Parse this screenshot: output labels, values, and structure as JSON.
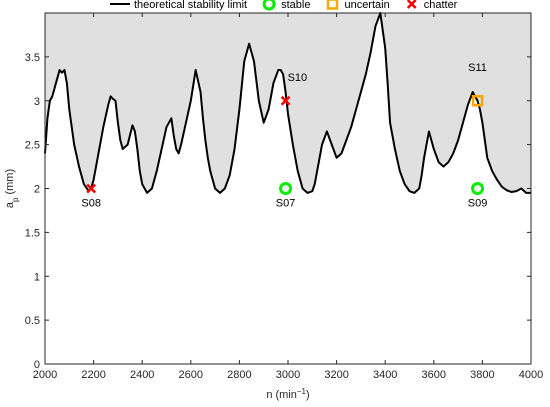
{
  "chart_data": {
    "type": "line",
    "xlabel_base": "n (min",
    "xlabel_sup": "−1",
    "xlabel_tail": ")",
    "ylabel_base": "a",
    "ylabel_sub": "p",
    "ylabel_tail": " (mm)",
    "xlim": [
      2000,
      4000
    ],
    "ylim": [
      0,
      4
    ],
    "xticks": [
      2000,
      2200,
      2400,
      2600,
      2800,
      3000,
      3200,
      3400,
      3600,
      3800,
      4000
    ],
    "yticks": [
      0,
      0.5,
      1,
      1.5,
      2,
      2.5,
      3,
      3.5
    ],
    "ytick_labels": [
      "0",
      "0.5",
      "1",
      "1.5",
      "2",
      "2.5",
      "3",
      "3.5"
    ],
    "grid": false,
    "legend_position": "top",
    "legend": [
      {
        "key": "limit",
        "label": "theoretical stability limit"
      },
      {
        "key": "stable",
        "label": "stable"
      },
      {
        "key": "uncertain",
        "label": "uncertain"
      },
      {
        "key": "chatter",
        "label": "chatter"
      }
    ],
    "colors": {
      "limit": "#000000",
      "fill": "#e0e0e0",
      "stable": "#00ee00",
      "uncertain": "#ffa500",
      "chatter": "#ff0000"
    },
    "stability_limit": {
      "x": [
        2000,
        2010,
        2020,
        2030,
        2040,
        2055,
        2060,
        2070,
        2080,
        2090,
        2100,
        2110,
        2120,
        2140,
        2160,
        2180,
        2190,
        2200,
        2220,
        2240,
        2260,
        2270,
        2280,
        2290,
        2300,
        2310,
        2320,
        2340,
        2360,
        2370,
        2380,
        2390,
        2400,
        2420,
        2440,
        2460,
        2480,
        2500,
        2520,
        2530,
        2540,
        2550,
        2560,
        2580,
        2600,
        2620,
        2640,
        2650,
        2660,
        2670,
        2680,
        2700,
        2720,
        2740,
        2760,
        2780,
        2800,
        2820,
        2840,
        2860,
        2880,
        2900,
        2920,
        2940,
        2960,
        2970,
        2980,
        2990,
        3000,
        3020,
        3040,
        3060,
        3080,
        3100,
        3110,
        3120,
        3130,
        3140,
        3160,
        3180,
        3200,
        3220,
        3240,
        3260,
        3280,
        3300,
        3320,
        3340,
        3360,
        3380,
        3400,
        3410,
        3420,
        3440,
        3460,
        3480,
        3500,
        3520,
        3540,
        3550,
        3560,
        3570,
        3580,
        3590,
        3600,
        3620,
        3640,
        3660,
        3680,
        3700,
        3720,
        3740,
        3760,
        3780,
        3790,
        3800,
        3810,
        3820,
        3840,
        3860,
        3880,
        3900,
        3920,
        3940,
        3960,
        3980,
        4000
      ],
      "y": [
        2.4,
        2.8,
        3.0,
        3.05,
        3.15,
        3.3,
        3.35,
        3.32,
        3.35,
        3.2,
        2.9,
        2.7,
        2.5,
        2.25,
        2.05,
        1.97,
        2.0,
        2.1,
        2.4,
        2.7,
        2.95,
        3.05,
        3.02,
        3.0,
        2.75,
        2.55,
        2.45,
        2.5,
        2.72,
        2.65,
        2.45,
        2.2,
        2.05,
        1.95,
        2.0,
        2.2,
        2.45,
        2.7,
        2.8,
        2.6,
        2.45,
        2.4,
        2.5,
        2.75,
        3.0,
        3.35,
        3.1,
        2.8,
        2.55,
        2.35,
        2.2,
        2.0,
        1.95,
        2.0,
        2.15,
        2.45,
        2.9,
        3.45,
        3.65,
        3.45,
        3.0,
        2.75,
        2.9,
        3.2,
        3.35,
        3.35,
        3.3,
        3.1,
        2.85,
        2.5,
        2.2,
        2.0,
        1.95,
        1.97,
        2.05,
        2.2,
        2.35,
        2.5,
        2.65,
        2.5,
        2.35,
        2.4,
        2.55,
        2.7,
        2.9,
        3.1,
        3.3,
        3.55,
        3.85,
        4.0,
        3.6,
        3.2,
        2.75,
        2.45,
        2.2,
        2.05,
        1.97,
        1.95,
        2.0,
        2.15,
        2.35,
        2.5,
        2.65,
        2.55,
        2.45,
        2.3,
        2.25,
        2.3,
        2.4,
        2.55,
        2.75,
        2.95,
        3.1,
        3.0,
        2.9,
        2.75,
        2.55,
        2.35,
        2.2,
        2.1,
        2.02,
        1.98,
        1.96,
        1.97,
        2.0,
        1.95,
        1.95
      ]
    },
    "points": [
      {
        "label": "S08",
        "x": 2190,
        "y": 2.0,
        "kind": "chatter",
        "label_pos": "below"
      },
      {
        "label": "S10",
        "x": 2990,
        "y": 3.0,
        "kind": "chatter",
        "label_pos": "above-right"
      },
      {
        "label": "S07",
        "x": 2990,
        "y": 2.0,
        "kind": "stable",
        "label_pos": "below"
      },
      {
        "label": "S11",
        "x": 3780,
        "y": 3.0,
        "kind": "uncertain",
        "label_pos": "above"
      },
      {
        "label": "S09",
        "x": 3780,
        "y": 2.0,
        "kind": "stable",
        "label_pos": "below"
      }
    ]
  }
}
